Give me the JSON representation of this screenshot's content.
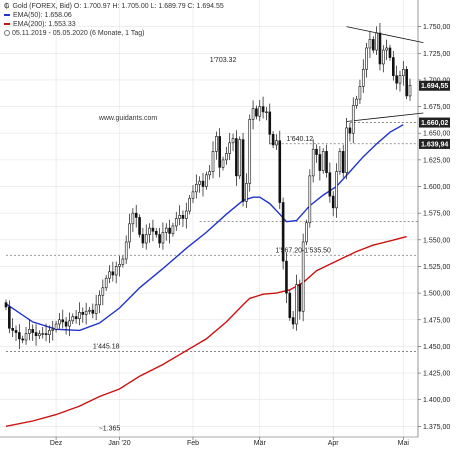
{
  "header": {
    "logo": "₲",
    "line1": "Gold (FOREX, Bid)  O: 1.700.97  H: 1.705.00  L: 1.689.79  C: 1.694.55",
    "ema50_label": "EMA(50): 1.658.06",
    "ema200_label": "EMA(200): 1.553.33",
    "range_label": "05.11.2019 - 05.05.2020  (6 Monate, 1 Tag)"
  },
  "watermark": "www.guidants.com",
  "colors": {
    "candle": "#111111",
    "ema50": "#2233cc",
    "ema200": "#cc1111",
    "price_tag": "#222222",
    "support_line": "#777777",
    "grid": "#e4e4e4"
  },
  "chart_data": {
    "type": "candlestick",
    "title": "Gold (FOREX, Bid)",
    "ylim": [
      1365,
      1775
    ],
    "y_ticks": [
      1375,
      1400,
      1425,
      1450,
      1475,
      1500,
      1525,
      1550,
      1575,
      1600,
      1625,
      1650,
      1675,
      1700,
      1725,
      1750
    ],
    "y_tick_labels": [
      "1.375,00",
      "1.400,00",
      "1.425,00",
      "1.450,00",
      "1.475,00",
      "1.500,00",
      "1.525,00",
      "1.550,00",
      "1.575,00",
      "1.600,00",
      "1.625,00",
      "1.650,00",
      "1.675,00",
      "1.700,00",
      "1.725,00",
      "1.750,00"
    ],
    "x_labels": [
      {
        "label": "Dez",
        "bar": 15
      },
      {
        "label": "Jan '20",
        "bar": 34
      },
      {
        "label": "Feb",
        "bar": 56
      },
      {
        "label": "Mär",
        "bar": 76
      },
      {
        "label": "Apr",
        "bar": 98
      },
      {
        "label": "Mai",
        "bar": 119
      }
    ],
    "grid": true,
    "closes": [
      1487,
      1467,
      1465,
      1463,
      1457,
      1456,
      1462,
      1466,
      1463,
      1460,
      1462,
      1462,
      1461,
      1465,
      1466,
      1471,
      1475,
      1473,
      1469,
      1474,
      1478,
      1476,
      1482,
      1480,
      1483,
      1484,
      1481,
      1489,
      1498,
      1505,
      1514,
      1520,
      1517,
      1525,
      1527,
      1532,
      1548,
      1565,
      1575,
      1571,
      1555,
      1547,
      1555,
      1561,
      1558,
      1555,
      1547,
      1557,
      1561,
      1556,
      1563,
      1570,
      1573,
      1570,
      1577,
      1589,
      1595,
      1602,
      1605,
      1600,
      1611,
      1614,
      1633,
      1647,
      1618,
      1625,
      1631,
      1641,
      1645,
      1610,
      1644,
      1586,
      1603,
      1663,
      1673,
      1666,
      1675,
      1670,
      1670,
      1649,
      1639,
      1643,
      1585,
      1530,
      1500,
      1477,
      1471,
      1508,
      1483,
      1548,
      1566,
      1610,
      1635,
      1630,
      1615,
      1633,
      1613,
      1591,
      1580,
      1614,
      1633,
      1613,
      1655,
      1650,
      1676,
      1682,
      1694,
      1710,
      1730,
      1738,
      1728,
      1744,
      1715,
      1728,
      1730,
      1721,
      1704,
      1697,
      1704,
      1710,
      1685,
      1695
    ],
    "series": [
      {
        "name": "EMA(50)",
        "value": 1658.06,
        "points": [
          [
            0,
            1490
          ],
          [
            8,
            1473
          ],
          [
            15,
            1466
          ],
          [
            22,
            1465
          ],
          [
            28,
            1472
          ],
          [
            34,
            1486
          ],
          [
            40,
            1505
          ],
          [
            47,
            1523
          ],
          [
            54,
            1542
          ],
          [
            60,
            1557
          ],
          [
            66,
            1574
          ],
          [
            71,
            1587
          ],
          [
            74,
            1590
          ],
          [
            76,
            1590
          ],
          [
            79,
            1584
          ],
          [
            82,
            1574
          ],
          [
            84,
            1567
          ],
          [
            87,
            1568
          ],
          [
            91,
            1582
          ],
          [
            95,
            1592
          ],
          [
            99,
            1600
          ],
          [
            103,
            1614
          ],
          [
            107,
            1628
          ],
          [
            111,
            1640
          ],
          [
            115,
            1651
          ],
          [
            119,
            1658
          ]
        ]
      },
      {
        "name": "EMA(200)",
        "value": 1553.33,
        "points": [
          [
            0,
            1375
          ],
          [
            8,
            1380
          ],
          [
            15,
            1386
          ],
          [
            22,
            1394
          ],
          [
            28,
            1403
          ],
          [
            34,
            1410
          ],
          [
            40,
            1422
          ],
          [
            47,
            1433
          ],
          [
            54,
            1446
          ],
          [
            60,
            1457
          ],
          [
            66,
            1473
          ],
          [
            71,
            1489
          ],
          [
            73,
            1495
          ],
          [
            77,
            1499
          ],
          [
            81,
            1500
          ],
          [
            85,
            1503
          ],
          [
            89,
            1510
          ],
          [
            93,
            1521
          ],
          [
            97,
            1527
          ],
          [
            101,
            1533
          ],
          [
            105,
            1539
          ],
          [
            110,
            1545
          ],
          [
            115,
            1549
          ],
          [
            120,
            1553
          ]
        ]
      }
    ],
    "price_tags": [
      {
        "value": 1694.55,
        "label": "1.694,55"
      },
      {
        "value": 1660.02,
        "label": "1.660,02"
      },
      {
        "value": 1639.94,
        "label": "1.639,94"
      }
    ],
    "hlines": [
      {
        "value": 1445.18,
        "from_bar": 0,
        "label": "1'445.18",
        "label_bar": 30
      },
      {
        "value": 1535.5,
        "from_bar": 0,
        "label": "1'567.20-1'535.50",
        "label_bar": 89
      },
      {
        "value": 1567.2,
        "from_bar": 58
      },
      {
        "value": 1640.12,
        "from_bar": 79,
        "label": "1'640.12",
        "label_bar": 88
      },
      {
        "value": 1660,
        "from_bar": 103
      }
    ],
    "annotations": [
      {
        "label": "1'703.32",
        "bar": 65,
        "value": 1717
      },
      {
        "label": "~1.365",
        "bar": 31,
        "value": 1371
      }
    ],
    "trendlines": [
      {
        "from": [
          102,
          1750
        ],
        "to": [
          125,
          1735
        ]
      },
      {
        "from": [
          102,
          1661
        ],
        "to": [
          125,
          1669
        ]
      }
    ]
  }
}
